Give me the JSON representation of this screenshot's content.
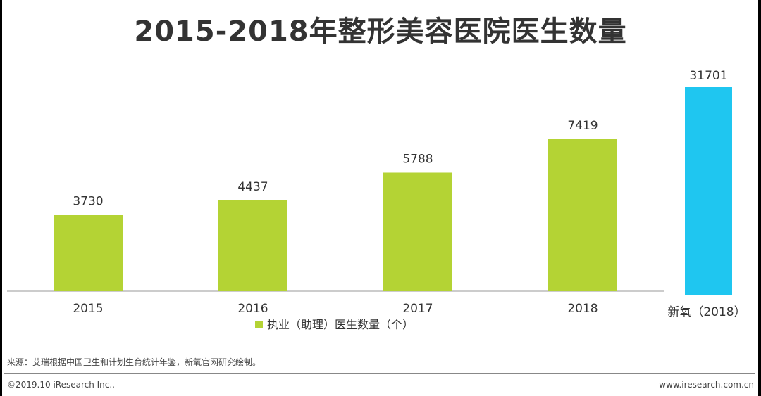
{
  "title": "2015-2018年整形美容医院医生数量",
  "chart_data": [
    {
      "type": "bar",
      "categories": [
        "2015",
        "2016",
        "2017",
        "2018"
      ],
      "series": [
        {
          "name": "执业（助理）医生数量（个）",
          "values": [
            3730,
            4437,
            5788,
            7419
          ],
          "color": "#b4d334"
        }
      ],
      "ylim": [
        0,
        7900
      ],
      "legend_position": "bottom",
      "grid": false
    },
    {
      "type": "bar",
      "categories": [
        "新氧（2018）"
      ],
      "series": [
        {
          "values": [
            31701
          ],
          "color": "#1fc6f0"
        }
      ],
      "ylim": [
        0,
        31701
      ]
    }
  ],
  "footer": {
    "source": "来源：艾瑞根据中国卫生和计划生育统计年鉴，新氧官网研究绘制。",
    "copyright": "©2019.10 iResearch Inc..",
    "website": "www.iresearch.com.cn"
  }
}
